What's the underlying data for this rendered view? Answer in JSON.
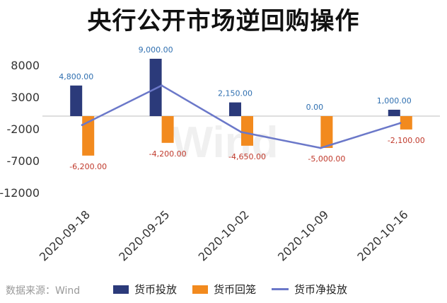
{
  "title": "央行公开市场逆回购操作",
  "source": "数据来源：Wind",
  "watermark": "Wind",
  "colors": {
    "release": "#2b3a7a",
    "withdraw": "#f28a1e",
    "net": "#6b78c9",
    "release_label": "#2f6fb0",
    "withdraw_label": "#c0392b"
  },
  "chart_data": {
    "type": "bar",
    "categories": [
      "2020-09-18",
      "2020-09-25",
      "2020-10-02",
      "2020-10-09",
      "2020-10-16"
    ],
    "yticks": [
      8000,
      3000,
      -2000,
      -7000,
      -12000
    ],
    "ylim": [
      -12000,
      9000
    ],
    "series": [
      {
        "name": "货币投放",
        "type": "bar",
        "values": [
          4800,
          9000,
          2150,
          0,
          1000
        ],
        "labels": [
          "4,800.00",
          "9,000.00",
          "2,150.00",
          "0.00",
          "1,000.00"
        ]
      },
      {
        "name": "货币回笼",
        "type": "bar",
        "values": [
          -6200,
          -4200,
          -4650,
          -5000,
          -2100
        ],
        "labels": [
          "-6,200.00",
          "-4,200.00",
          "-4,650.00",
          "-5,000.00",
          "-2,100.00"
        ]
      },
      {
        "name": "货币净投放",
        "type": "line",
        "values": [
          -1400,
          4800,
          -2500,
          -5000,
          -1100
        ]
      }
    ]
  }
}
